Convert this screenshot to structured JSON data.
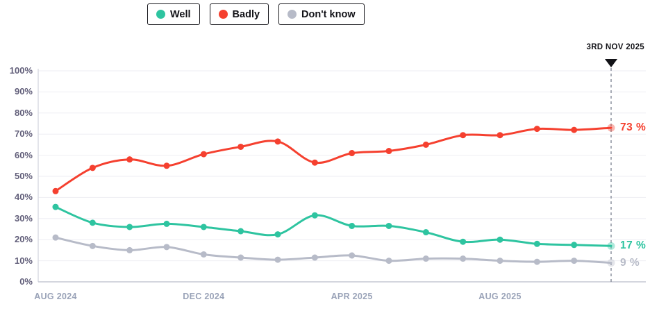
{
  "legend": {
    "items": [
      {
        "label": "Well",
        "color": "#2EC4A0"
      },
      {
        "label": "Badly",
        "color": "#F5402F"
      },
      {
        "label": "Don't know",
        "color": "#B7BBC8"
      }
    ]
  },
  "annotation": {
    "label": "3RD NOV 2025"
  },
  "chart_data": {
    "type": "line",
    "title": "",
    "n_points": 16,
    "x_tick_labels": [
      {
        "index": 0,
        "label": "AUG 2024"
      },
      {
        "index": 4,
        "label": "DEC 2024"
      },
      {
        "index": 8,
        "label": "APR 2025"
      },
      {
        "index": 12,
        "label": "AUG 2025"
      }
    ],
    "y_ticks": [
      {
        "value": 0,
        "label": "0%"
      },
      {
        "value": 10,
        "label": "10%"
      },
      {
        "value": 20,
        "label": "20%"
      },
      {
        "value": 30,
        "label": "30%"
      },
      {
        "value": 40,
        "label": "40%"
      },
      {
        "value": 50,
        "label": "50%"
      },
      {
        "value": 60,
        "label": "60%"
      },
      {
        "value": 70,
        "label": "70%"
      },
      {
        "value": 80,
        "label": "80%"
      },
      {
        "value": 90,
        "label": "90%"
      },
      {
        "value": 100,
        "label": "100%"
      }
    ],
    "ylim": [
      0,
      100
    ],
    "grid": true,
    "legend_position": "top",
    "annotation": {
      "label": "3RD NOV 2025",
      "x_index": 15
    },
    "series": [
      {
        "name": "Don't know",
        "color": "#B7BBC8",
        "end_label": "9 %",
        "values": [
          21,
          17,
          15,
          16.5,
          13,
          11.5,
          10.5,
          11.5,
          12.5,
          10,
          11,
          11,
          10,
          9.5,
          10,
          9
        ]
      },
      {
        "name": "Well",
        "color": "#2EC4A0",
        "end_label": "17 %",
        "values": [
          35.5,
          28,
          26,
          27.5,
          26,
          24,
          22.5,
          31.5,
          26.5,
          26.5,
          23.5,
          19,
          20,
          18,
          17.5,
          17
        ]
      },
      {
        "name": "Badly",
        "color": "#F5402F",
        "end_label": "73 %",
        "values": [
          43,
          54,
          58,
          55,
          60.5,
          64,
          66.5,
          56.5,
          61,
          62,
          65,
          69.5,
          69.5,
          72.5,
          72,
          73
        ]
      }
    ]
  },
  "colors": {
    "y_tick": "#625F7A",
    "x_tick": "#9AA3B8",
    "gridline": "#EEEEF3",
    "axis_x": "#C6C9D3",
    "axis_y": "#DADBE3",
    "dashed_line": "#8C919E",
    "annotation_marker": "#121217",
    "legend_border": "#17171C",
    "background": "#FFFFFF"
  }
}
